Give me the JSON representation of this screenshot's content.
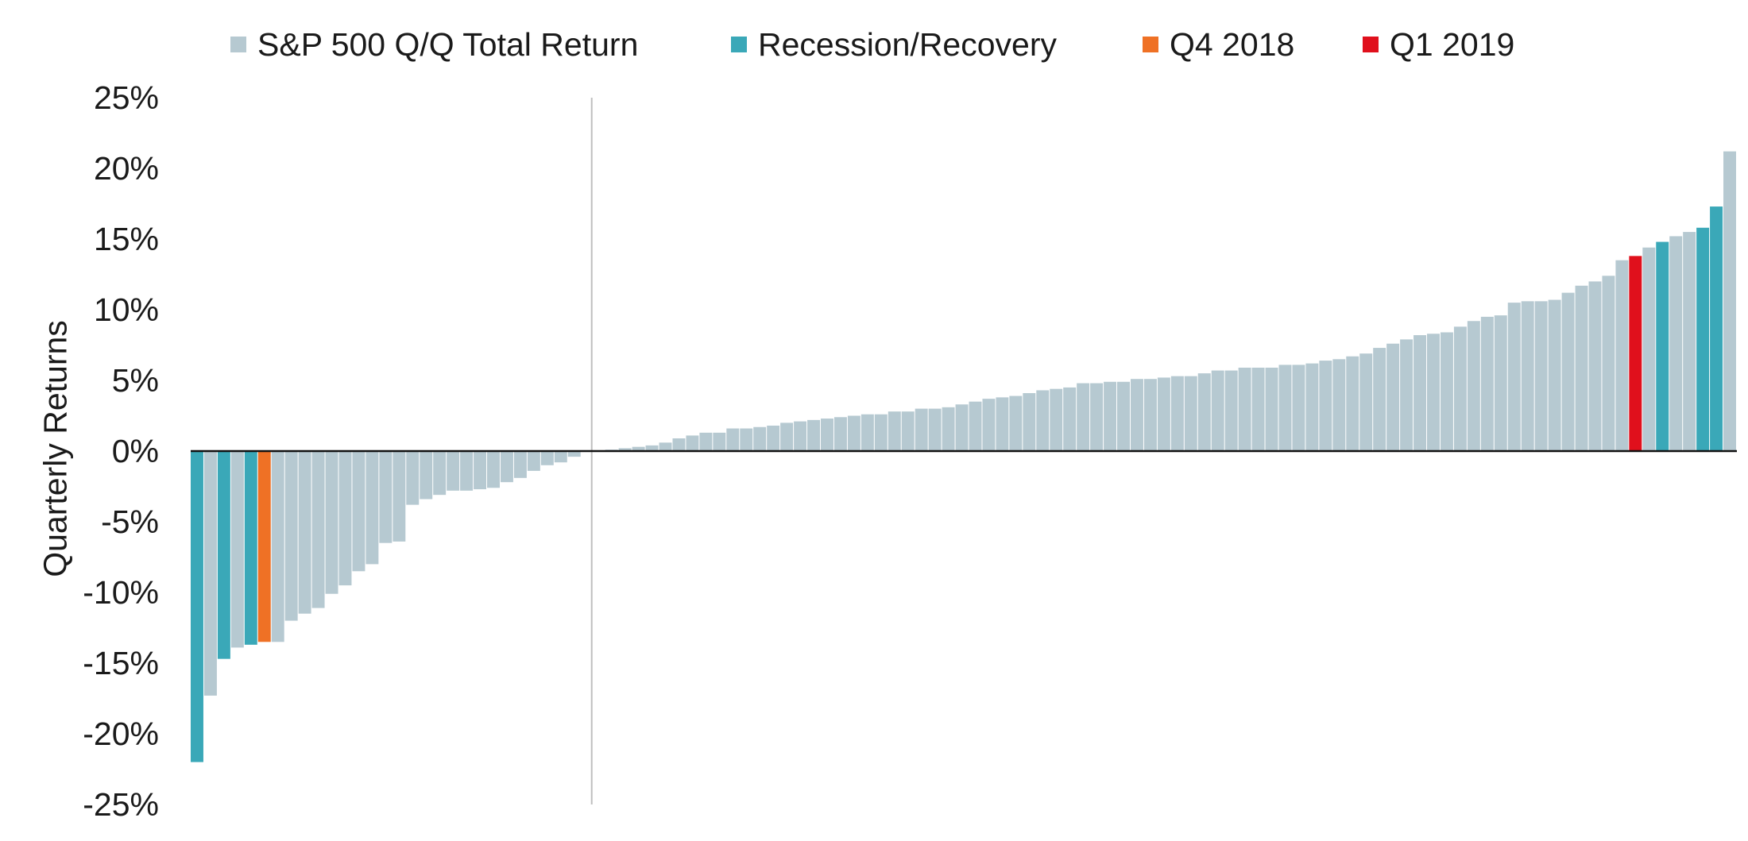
{
  "colors": {
    "base": "#b6c9d1",
    "recession": "#3aa8b8",
    "q4_2018": "#ef7125",
    "q1_2019": "#e0101c",
    "axis": "#111111",
    "divider": "#bfbfbf"
  },
  "chart_data": {
    "type": "bar",
    "title": "",
    "xlabel": "",
    "ylabel": "Quarterly Returns",
    "ylim": [
      -25,
      25
    ],
    "yticks": [
      -25,
      -20,
      -15,
      -10,
      -5,
      0,
      5,
      10,
      15,
      20,
      25
    ],
    "ytick_labels": [
      "-25%",
      "-20%",
      "-15%",
      "-10%",
      "-5%",
      "0%",
      "5%",
      "10%",
      "15%",
      "20%",
      "25%"
    ],
    "grid": false,
    "legend_position": "top",
    "legend": [
      {
        "key": "base",
        "label": "S&P 500 Q/Q Total Return"
      },
      {
        "key": "recession",
        "label": "Recession/Recovery"
      },
      {
        "key": "q4_2018",
        "label": "Q4 2018"
      },
      {
        "key": "q1_2019",
        "label": "Q1 2019"
      }
    ],
    "sort_order": "ascending",
    "values": [
      -22.0,
      -17.3,
      -14.7,
      -13.9,
      -13.7,
      -13.5,
      -13.5,
      -12.0,
      -11.5,
      -11.1,
      -10.1,
      -9.5,
      -8.5,
      -8.0,
      -6.5,
      -6.4,
      -3.8,
      -3.4,
      -3.1,
      -2.8,
      -2.8,
      -2.7,
      -2.6,
      -2.2,
      -1.9,
      -1.4,
      -1.0,
      -0.8,
      -0.4,
      0.1,
      0.2,
      0.3,
      0.4,
      0.6,
      0.9,
      1.1,
      1.3,
      1.3,
      1.6,
      1.6,
      1.7,
      1.8,
      2.0,
      2.1,
      2.2,
      2.3,
      2.4,
      2.5,
      2.6,
      2.6,
      2.8,
      2.8,
      3.0,
      3.0,
      3.1,
      3.3,
      3.5,
      3.7,
      3.8,
      3.9,
      4.1,
      4.3,
      4.4,
      4.5,
      4.8,
      4.8,
      4.9,
      4.9,
      5.1,
      5.1,
      5.2,
      5.3,
      5.3,
      5.5,
      5.7,
      5.7,
      5.9,
      5.9,
      5.9,
      6.1,
      6.1,
      6.2,
      6.4,
      6.5,
      6.7,
      6.9,
      7.3,
      7.6,
      7.9,
      8.2,
      8.3,
      8.4,
      8.8,
      9.2,
      9.5,
      9.6,
      10.5,
      10.6,
      10.6,
      10.7,
      11.2,
      11.7,
      12.0,
      12.4,
      13.5,
      13.8,
      14.4,
      14.8,
      15.2,
      15.5,
      15.8,
      17.3,
      21.2
    ],
    "categories_by_index": {
      "0": "recession",
      "2": "recession",
      "4": "recession",
      "5": "q4_2018",
      "105": "q1_2019",
      "107": "recession",
      "110": "recession",
      "111": "recession"
    },
    "divider_after_index": 28
  }
}
